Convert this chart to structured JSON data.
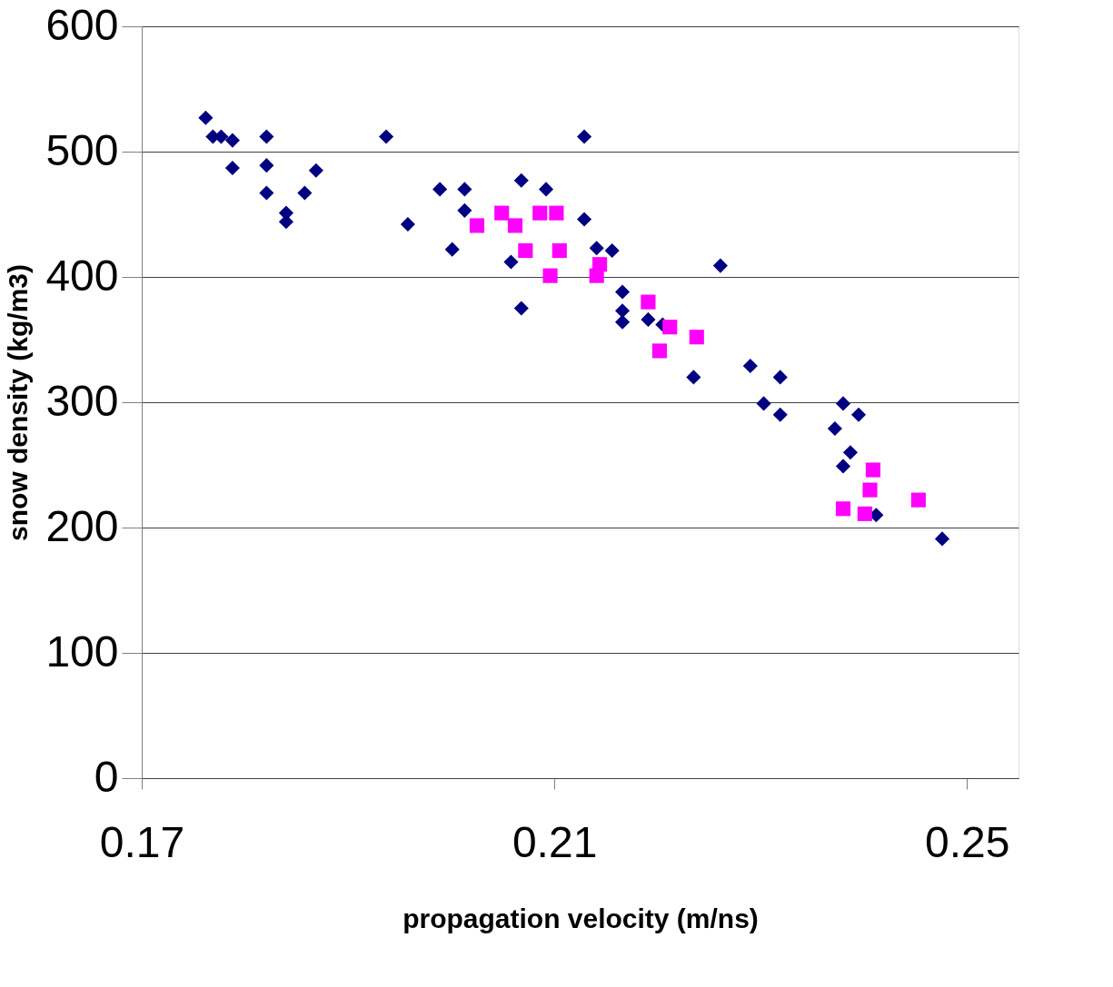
{
  "chart_data": {
    "type": "scatter",
    "xlabel": "propagation velocity (m/ns)",
    "ylabel": "snow density (kg/m3)",
    "xlim": [
      0.17,
      0.255
    ],
    "xticks": [
      0.17,
      0.21,
      0.25
    ],
    "ylim": [
      0,
      600
    ],
    "yticks": [
      0,
      100,
      200,
      300,
      400,
      500,
      600
    ],
    "grid": "y",
    "legend": false,
    "series": [
      {
        "color": "#000080",
        "marker": "diamond",
        "x": [
          0.1762,
          0.1769,
          0.1777,
          0.1788,
          0.1788,
          0.1821,
          0.1821,
          0.1821,
          0.184,
          0.184,
          0.1858,
          0.1869,
          0.1937,
          0.1958,
          0.1989,
          0.2013,
          0.2013,
          0.2001,
          0.2068,
          0.2092,
          0.2058,
          0.2068,
          0.2129,
          0.2129,
          0.2141,
          0.2156,
          0.2166,
          0.2166,
          0.2166,
          0.2191,
          0.2205,
          0.2235,
          0.2261,
          0.229,
          0.2303,
          0.2319,
          0.2319,
          0.2372,
          0.238,
          0.2395,
          0.2387,
          0.238,
          0.2412,
          0.2476
        ],
        "values": [
          527,
          512,
          512,
          509,
          487,
          512,
          489,
          467,
          451,
          444,
          467,
          485,
          512,
          442,
          470,
          470,
          453,
          422,
          477,
          470,
          412,
          375,
          512,
          446,
          423,
          421,
          388,
          373,
          364,
          366,
          362,
          320,
          409,
          329,
          299,
          320,
          290,
          279,
          299,
          290,
          260,
          249,
          210,
          191
        ]
      },
      {
        "color": "#ff00ff",
        "marker": "square",
        "x": [
          0.2025,
          0.2049,
          0.2062,
          0.2072,
          0.2086,
          0.2102,
          0.2096,
          0.2105,
          0.2141,
          0.2144,
          0.2191,
          0.2202,
          0.2212,
          0.2238,
          0.238,
          0.2401,
          0.2406,
          0.2409,
          0.2453
        ],
        "values": [
          441,
          451,
          441,
          421,
          451,
          451,
          401,
          421,
          401,
          410,
          380,
          341,
          360,
          352,
          215,
          211,
          230,
          246,
          222
        ]
      }
    ]
  }
}
